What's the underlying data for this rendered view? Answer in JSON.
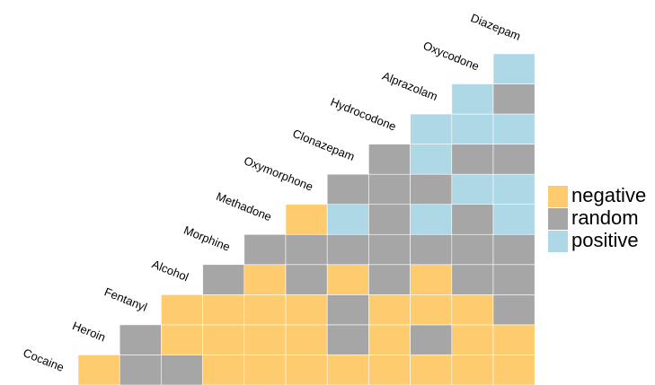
{
  "chart_data": {
    "type": "triangle-heatmap",
    "variables": [
      "Cocaine",
      "Heroin",
      "Fentanyl",
      "Alcohol",
      "Morphine",
      "Methadone",
      "Oxymorphone",
      "Clonazepam",
      "Hydrocodone",
      "Alprazolam",
      "Oxycodone",
      "Diazepam"
    ],
    "levels": [
      {
        "name": "negative",
        "color": "#fecb6e"
      },
      {
        "name": "random",
        "color": "#a6a6a6"
      },
      {
        "name": "positive",
        "color": "#aed8e6"
      }
    ],
    "rows": [
      [
        "negative",
        "random",
        "random",
        "negative",
        "negative",
        "negative",
        "negative",
        "negative",
        "negative",
        "negative",
        "negative"
      ],
      [
        "random",
        "negative",
        "negative",
        "negative",
        "negative",
        "random",
        "negative",
        "random",
        "negative",
        "negative"
      ],
      [
        "negative",
        "negative",
        "negative",
        "negative",
        "random",
        "negative",
        "negative",
        "negative",
        "random"
      ],
      [
        "random",
        "negative",
        "random",
        "negative",
        "random",
        "negative",
        "random",
        "random"
      ],
      [
        "random",
        "random",
        "random",
        "random",
        "random",
        "random",
        "random"
      ],
      [
        "negative",
        "positive",
        "random",
        "positive",
        "random",
        "positive"
      ],
      [
        "random",
        "random",
        "random",
        "positive",
        "positive"
      ],
      [
        "random",
        "positive",
        "random",
        "random"
      ],
      [
        "positive",
        "positive",
        "positive"
      ],
      [
        "positive",
        "random"
      ],
      [
        "positive"
      ]
    ]
  }
}
